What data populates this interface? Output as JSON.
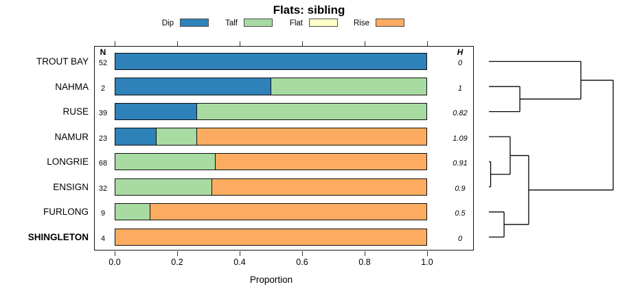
{
  "chart_data": {
    "type": "bar",
    "orientation": "horizontal",
    "stacked": true,
    "title": "Flats: sibling",
    "xlabel": "Proportion",
    "xlim": [
      0,
      1
    ],
    "xticks": [
      0,
      0.2,
      0.4,
      0.6,
      0.8,
      1
    ],
    "xtick_labels": [
      "0.0",
      "0.2",
      "0.4",
      "0.6",
      "0.8",
      "1.0"
    ],
    "grid": false,
    "legend_position": "top",
    "categories": [
      "TROUT BAY",
      "NAHMA",
      "RUSE",
      "NAMUR",
      "LONGRIE",
      "ENSIGN",
      "FURLONG",
      "SHINGLETON"
    ],
    "bold_categories": [
      "SHINGLETON"
    ],
    "series": [
      {
        "name": "Dip",
        "color": "#2E82B9",
        "values": [
          1,
          0.5,
          0.26,
          0.13,
          0,
          0,
          0,
          0
        ]
      },
      {
        "name": "Talf",
        "color": "#A8DBA2",
        "values": [
          0,
          0.5,
          0.74,
          0.13,
          0.32,
          0.31,
          0.11,
          0
        ]
      },
      {
        "name": "Flat",
        "color": "#FFFFC8",
        "values": [
          0,
          0,
          0,
          0,
          0,
          0,
          0,
          0
        ]
      },
      {
        "name": "Rise",
        "color": "#FBAC60",
        "values": [
          0,
          0,
          0,
          0.74,
          0.68,
          0.69,
          0.89,
          1
        ]
      }
    ],
    "columns": {
      "n_header": "N",
      "h_header": "H"
    },
    "annotations": {
      "N": [
        "52",
        "2",
        "39",
        "23",
        "68",
        "32",
        "9",
        "4"
      ],
      "H": [
        "0",
        "1",
        "0.82",
        "1.09",
        "0.91",
        "0.9",
        "0.5",
        "0"
      ]
    },
    "dendrogram": {
      "side": "right",
      "tree": {
        "h": 1,
        "children": [
          {
            "h": 0.74,
            "children": [
              {
                "leaf": "TROUT BAY"
              },
              {
                "h": 0.249,
                "children": [
                  {
                    "leaf": "NAHMA"
                  },
                  {
                    "leaf": "RUSE"
                  }
                ]
              }
            ]
          },
          {
            "h": 0.32,
            "children": [
              {
                "h": 0.171,
                "children": [
                  {
                    "leaf": "NAMUR"
                  },
                  {
                    "h": 0.014,
                    "children": [
                      {
                        "leaf": "LONGRIE"
                      },
                      {
                        "leaf": "ENSIGN"
                      }
                    ]
                  }
                ]
              },
              {
                "h": 0.122,
                "children": [
                  {
                    "leaf": "FURLONG"
                  },
                  {
                    "leaf": "SHINGLETON"
                  }
                ]
              }
            ]
          }
        ]
      }
    }
  }
}
